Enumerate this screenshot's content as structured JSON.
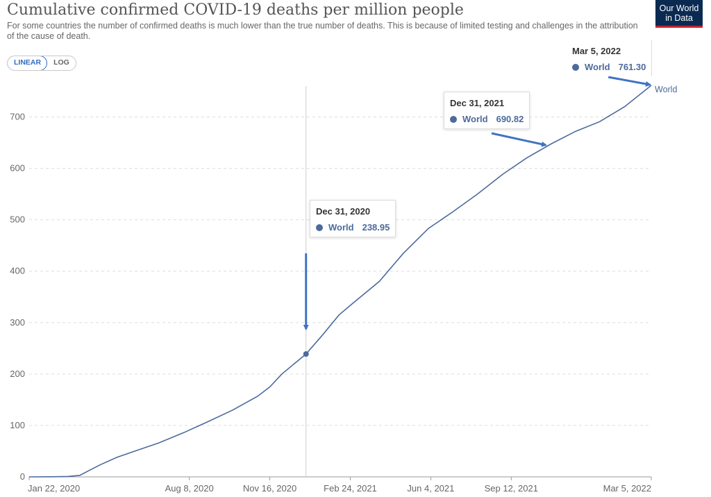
{
  "header": {
    "title": "Cumulative confirmed COVID-19 deaths per million people",
    "subtitle": "For some countries the number of confirmed deaths is much lower than the true number of deaths. This is because of limited testing and challenges in the attribution of the cause of death.",
    "logo_line1": "Our World",
    "logo_line2": "in Data"
  },
  "controls": {
    "linear_label": "LINEAR",
    "log_label": "LOG",
    "active": "LINEAR"
  },
  "colors": {
    "series": "#4c6a9c",
    "arrow": "#3f73c4",
    "grid": "#dddddd",
    "axis_text": "#666666"
  },
  "tooltips": [
    {
      "date": "Dec 31, 2020",
      "series": "World",
      "value": "238.95"
    },
    {
      "date": "Dec 31, 2021",
      "series": "World",
      "value": "690.82"
    },
    {
      "date": "Mar 5, 2022",
      "series": "World",
      "value": "761.30"
    }
  ],
  "chart_data": {
    "type": "line",
    "title": "Cumulative confirmed COVID-19 deaths per million people",
    "xlabel": "",
    "ylabel": "",
    "ylim": [
      0,
      760
    ],
    "yticks": [
      0,
      100,
      200,
      300,
      400,
      500,
      600,
      700
    ],
    "xlim": [
      "2020-01-22",
      "2022-03-05"
    ],
    "xticks": [
      {
        "date": "2020-01-22",
        "label": "Jan 22, 2020"
      },
      {
        "date": "2020-08-08",
        "label": "Aug 8, 2020"
      },
      {
        "date": "2020-11-16",
        "label": "Nov 16, 2020"
      },
      {
        "date": "2021-02-24",
        "label": "Feb 24, 2021"
      },
      {
        "date": "2021-06-04",
        "label": "Jun 4, 2021"
      },
      {
        "date": "2021-09-12",
        "label": "Sep 12, 2021"
      },
      {
        "date": "2022-03-05",
        "label": "Mar 5, 2022"
      }
    ],
    "grid": "horizontal dashed",
    "series": [
      {
        "name": "World",
        "label_at_end": "World",
        "points": [
          [
            "2020-01-22",
            0
          ],
          [
            "2020-02-20",
            0.3
          ],
          [
            "2020-03-10",
            0.8
          ],
          [
            "2020-03-25",
            3
          ],
          [
            "2020-04-05",
            12
          ],
          [
            "2020-04-20",
            24
          ],
          [
            "2020-05-10",
            38
          ],
          [
            "2020-06-01",
            50
          ],
          [
            "2020-07-01",
            66
          ],
          [
            "2020-08-01",
            86
          ],
          [
            "2020-09-01",
            108
          ],
          [
            "2020-10-01",
            130
          ],
          [
            "2020-11-01",
            157
          ],
          [
            "2020-11-16",
            175
          ],
          [
            "2020-12-01",
            200
          ],
          [
            "2020-12-31",
            238.95
          ],
          [
            "2021-01-20",
            275
          ],
          [
            "2021-02-10",
            315
          ],
          [
            "2021-03-01",
            340
          ],
          [
            "2021-04-01",
            380
          ],
          [
            "2021-05-01",
            435
          ],
          [
            "2021-06-01",
            483
          ],
          [
            "2021-07-01",
            515
          ],
          [
            "2021-08-01",
            550
          ],
          [
            "2021-09-01",
            588
          ],
          [
            "2021-10-01",
            620
          ],
          [
            "2021-11-01",
            648
          ],
          [
            "2021-12-01",
            672
          ],
          [
            "2021-12-31",
            690.82
          ],
          [
            "2022-01-31",
            720
          ],
          [
            "2022-03-05",
            761.3
          ]
        ]
      }
    ],
    "highlight_point": {
      "date": "2020-12-31",
      "value": 238.95
    }
  }
}
